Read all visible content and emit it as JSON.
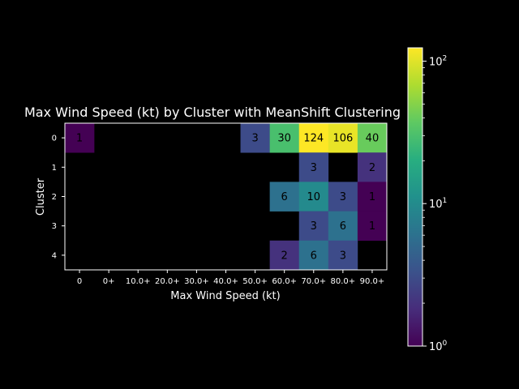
{
  "chart_data": {
    "type": "heatmap",
    "title": "Max Wind Speed (kt) by Cluster with MeanShift Clustering",
    "xlabel": "Max Wind Speed (kt)",
    "ylabel": "Cluster",
    "x_categories": [
      "0",
      "0+",
      "10.0+",
      "20.0+",
      "30.0+",
      "40.0+",
      "50.0+",
      "60.0+",
      "70.0+",
      "80.0+",
      "90.0+"
    ],
    "y_categories": [
      "0",
      "1",
      "2",
      "3",
      "4"
    ],
    "values": [
      [
        1,
        null,
        null,
        null,
        null,
        null,
        3,
        30,
        124,
        106,
        40
      ],
      [
        null,
        null,
        null,
        null,
        null,
        null,
        null,
        null,
        3,
        null,
        2
      ],
      [
        null,
        null,
        null,
        null,
        null,
        null,
        null,
        6,
        10,
        3,
        1
      ],
      [
        null,
        null,
        null,
        null,
        null,
        null,
        null,
        null,
        3,
        6,
        1
      ],
      [
        null,
        null,
        null,
        null,
        null,
        null,
        null,
        2,
        6,
        3,
        null
      ]
    ],
    "colorbar": {
      "scale": "log",
      "colormap": "viridis",
      "range": [
        1,
        124
      ],
      "ticks": [
        {
          "value": 1,
          "base": "10",
          "exp": "0"
        },
        {
          "value": 10,
          "base": "10",
          "exp": "1"
        },
        {
          "value": 100,
          "base": "10",
          "exp": "2"
        }
      ]
    }
  }
}
